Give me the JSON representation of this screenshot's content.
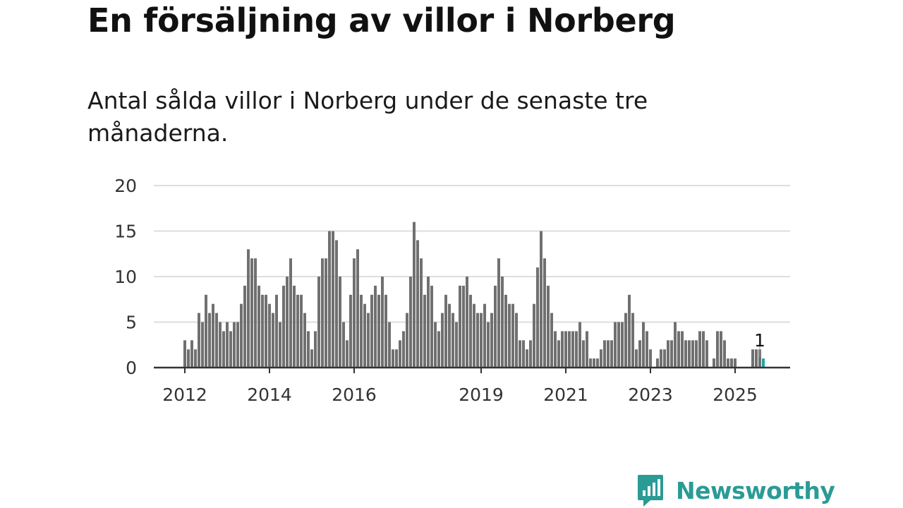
{
  "header": {
    "title": "En försäljning av villor i Norberg",
    "subtitle": "Antal sålda villor i Norberg under de senaste tre månaderna."
  },
  "brand": {
    "name": "Newsworthy",
    "icon": "chart-bubble-icon",
    "color": "#2a9b95"
  },
  "chart_data": {
    "type": "bar",
    "title": "",
    "xlabel": "",
    "ylabel": "",
    "ylim": [
      0,
      20
    ],
    "yticks": [
      0,
      5,
      10,
      15,
      20
    ],
    "grid": true,
    "x_tick_labels": [
      "2012",
      "2014",
      "2016",
      "2019",
      "2021",
      "2023",
      "2025"
    ],
    "colors": {
      "bar": "#707070",
      "highlight": "#1fa5a2",
      "grid": "#dddddd",
      "axis": "#333333"
    },
    "series": [
      {
        "values": [
          3,
          2,
          3,
          2,
          6,
          5,
          8,
          6,
          7,
          6,
          5,
          4,
          5,
          4,
          5,
          5,
          7,
          9,
          13,
          12,
          12,
          9,
          8,
          8,
          7,
          6,
          8,
          5,
          9,
          10,
          12,
          9,
          8,
          8,
          6,
          4,
          2,
          4,
          10,
          12,
          12,
          15,
          15,
          14,
          10,
          5,
          3,
          8,
          12,
          13,
          8,
          7,
          6,
          8,
          9,
          8,
          10,
          8,
          5,
          2,
          2,
          3,
          4,
          6,
          10,
          16,
          14,
          12,
          8,
          10,
          9,
          5,
          4,
          6,
          8,
          7,
          6,
          5,
          9,
          9,
          10,
          8,
          7,
          6,
          6,
          7,
          5,
          6,
          9,
          12,
          10,
          8,
          7,
          7,
          6,
          3,
          3,
          2,
          3,
          7,
          11,
          15,
          12,
          9,
          6,
          4,
          3,
          4,
          4,
          4,
          4,
          4,
          5,
          3,
          4,
          1,
          1,
          1,
          2,
          3,
          3,
          3,
          5,
          5,
          5,
          6,
          8,
          6,
          2,
          3,
          5,
          4,
          2,
          0,
          1,
          2,
          2,
          3,
          3,
          5,
          4,
          4,
          3,
          3,
          3,
          3,
          4,
          4,
          3,
          0,
          1,
          4,
          4,
          3,
          1,
          1,
          1,
          0,
          0,
          0,
          0,
          2,
          2,
          2,
          1
        ]
      }
    ],
    "highlight": {
      "label": "1",
      "value": 1
    }
  }
}
